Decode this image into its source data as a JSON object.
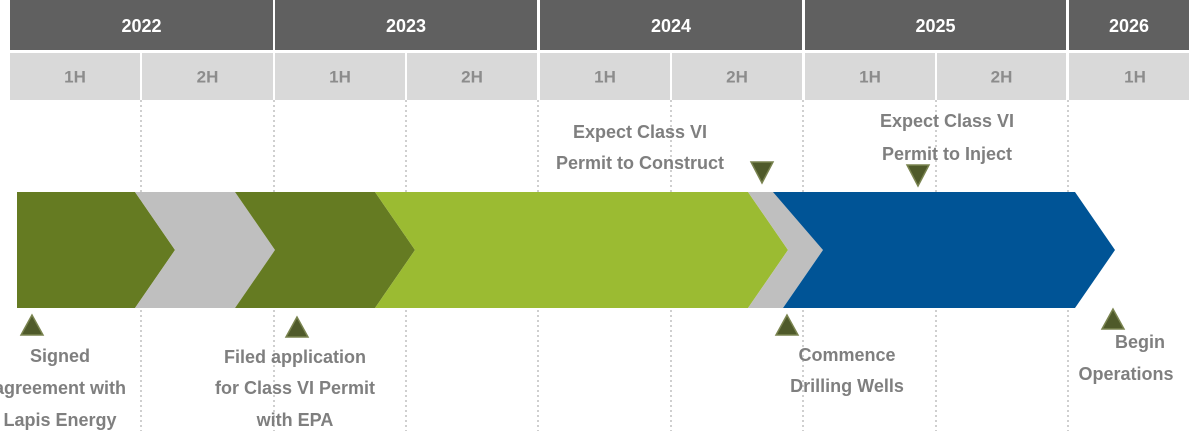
{
  "header": {
    "years": [
      "2022",
      "2023",
      "2024",
      "2025",
      "2026"
    ],
    "halves": [
      "1H",
      "2H",
      "1H",
      "2H",
      "1H",
      "2H",
      "1H",
      "2H",
      "1H"
    ]
  },
  "milestones": [
    {
      "lines": [
        "Signed",
        "agreement with",
        "Lapis Energy"
      ]
    },
    {
      "lines": [
        "Filed application",
        "for Class VI Permit",
        "with EPA"
      ]
    },
    {
      "lines": [
        "Expect Class VI",
        "Permit to Construct"
      ]
    },
    {
      "lines": [
        "Commence",
        "Drilling Wells"
      ]
    },
    {
      "lines": [
        "Expect Class VI",
        "Permit to Inject"
      ]
    },
    {
      "lines": [
        "Begin",
        "Operations"
      ]
    }
  ]
}
